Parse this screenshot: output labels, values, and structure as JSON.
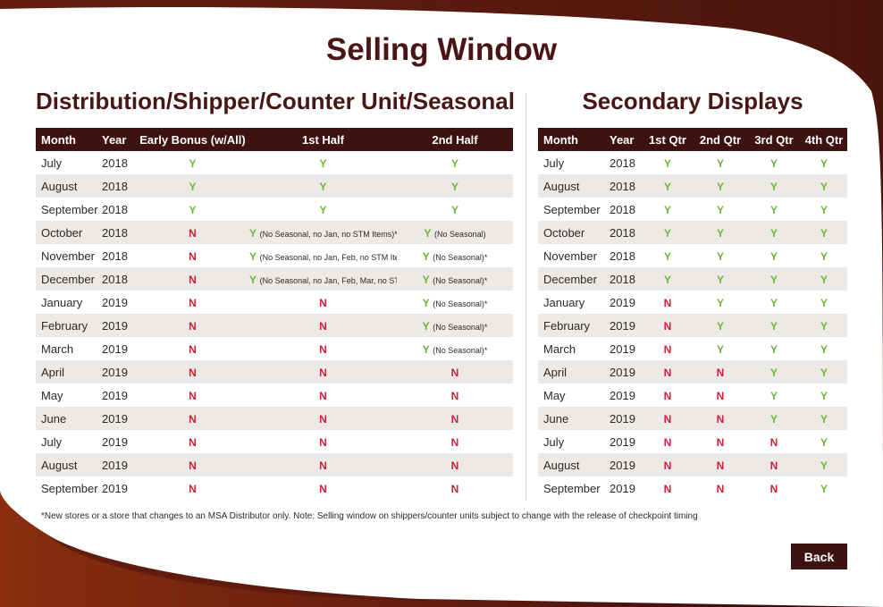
{
  "page_title": "Selling Window",
  "left_section": {
    "title": "Distribution/Shipper/Counter Unit/Seasonal",
    "headers": [
      "Month",
      "Year",
      "Early Bonus (w/All)",
      "1st Half",
      "2nd Half"
    ],
    "rows": [
      {
        "month": "July",
        "year": "2018",
        "cells": [
          {
            "mark": "Y",
            "note": ""
          },
          {
            "mark": "Y",
            "note": ""
          },
          {
            "mark": "Y",
            "note": ""
          }
        ]
      },
      {
        "month": "August",
        "year": "2018",
        "cells": [
          {
            "mark": "Y",
            "note": ""
          },
          {
            "mark": "Y",
            "note": ""
          },
          {
            "mark": "Y",
            "note": ""
          }
        ]
      },
      {
        "month": "September",
        "year": "2018",
        "cells": [
          {
            "mark": "Y",
            "note": ""
          },
          {
            "mark": "Y",
            "note": ""
          },
          {
            "mark": "Y",
            "note": ""
          }
        ]
      },
      {
        "month": "October",
        "year": "2018",
        "cells": [
          {
            "mark": "N",
            "note": ""
          },
          {
            "mark": "Y",
            "note": "(No Seasonal, no Jan, no STM Items)*"
          },
          {
            "mark": "Y",
            "note": "(No Seasonal)"
          }
        ]
      },
      {
        "month": "November",
        "year": "2018",
        "cells": [
          {
            "mark": "N",
            "note": ""
          },
          {
            "mark": "Y",
            "note": "(No Seasonal, no Jan, Feb, no STM Items)*"
          },
          {
            "mark": "Y",
            "note": "(No Seasonal)*"
          }
        ]
      },
      {
        "month": "December",
        "year": "2018",
        "cells": [
          {
            "mark": "N",
            "note": ""
          },
          {
            "mark": "Y",
            "note": "(No Seasonal, no Jan, Feb, Mar, no STM Items)*"
          },
          {
            "mark": "Y",
            "note": "(No Seasonal)*"
          }
        ]
      },
      {
        "month": "January",
        "year": "2019",
        "cells": [
          {
            "mark": "N",
            "note": ""
          },
          {
            "mark": "N",
            "note": ""
          },
          {
            "mark": "Y",
            "note": "(No Seasonal)*"
          }
        ]
      },
      {
        "month": "February",
        "year": "2019",
        "cells": [
          {
            "mark": "N",
            "note": ""
          },
          {
            "mark": "N",
            "note": ""
          },
          {
            "mark": "Y",
            "note": "(No Seasonal)*"
          }
        ]
      },
      {
        "month": "March",
        "year": "2019",
        "cells": [
          {
            "mark": "N",
            "note": ""
          },
          {
            "mark": "N",
            "note": ""
          },
          {
            "mark": "Y",
            "note": "(No Seasonal)*"
          }
        ]
      },
      {
        "month": "April",
        "year": "2019",
        "cells": [
          {
            "mark": "N",
            "note": ""
          },
          {
            "mark": "N",
            "note": ""
          },
          {
            "mark": "N",
            "note": ""
          }
        ]
      },
      {
        "month": "May",
        "year": "2019",
        "cells": [
          {
            "mark": "N",
            "note": ""
          },
          {
            "mark": "N",
            "note": ""
          },
          {
            "mark": "N",
            "note": ""
          }
        ]
      },
      {
        "month": "June",
        "year": "2019",
        "cells": [
          {
            "mark": "N",
            "note": ""
          },
          {
            "mark": "N",
            "note": ""
          },
          {
            "mark": "N",
            "note": ""
          }
        ]
      },
      {
        "month": "July",
        "year": "2019",
        "cells": [
          {
            "mark": "N",
            "note": ""
          },
          {
            "mark": "N",
            "note": ""
          },
          {
            "mark": "N",
            "note": ""
          }
        ]
      },
      {
        "month": "August",
        "year": "2019",
        "cells": [
          {
            "mark": "N",
            "note": ""
          },
          {
            "mark": "N",
            "note": ""
          },
          {
            "mark": "N",
            "note": ""
          }
        ]
      },
      {
        "month": "September",
        "year": "2019",
        "cells": [
          {
            "mark": "N",
            "note": ""
          },
          {
            "mark": "N",
            "note": ""
          },
          {
            "mark": "N",
            "note": ""
          }
        ]
      }
    ]
  },
  "right_section": {
    "title": "Secondary Displays",
    "headers": [
      "Month",
      "Year",
      "1st Qtr",
      "2nd Qtr",
      "3rd Qtr",
      "4th Qtr"
    ],
    "rows": [
      {
        "month": "July",
        "year": "2018",
        "cells": [
          {
            "mark": "Y",
            "note": ""
          },
          {
            "mark": "Y",
            "note": ""
          },
          {
            "mark": "Y",
            "note": ""
          },
          {
            "mark": "Y",
            "note": ""
          }
        ]
      },
      {
        "month": "August",
        "year": "2018",
        "cells": [
          {
            "mark": "Y",
            "note": ""
          },
          {
            "mark": "Y",
            "note": ""
          },
          {
            "mark": "Y",
            "note": ""
          },
          {
            "mark": "Y",
            "note": ""
          }
        ]
      },
      {
        "month": "September",
        "year": "2018",
        "cells": [
          {
            "mark": "Y",
            "note": ""
          },
          {
            "mark": "Y",
            "note": ""
          },
          {
            "mark": "Y",
            "note": ""
          },
          {
            "mark": "Y",
            "note": ""
          }
        ]
      },
      {
        "month": "October",
        "year": "2018",
        "cells": [
          {
            "mark": "Y",
            "note": ""
          },
          {
            "mark": "Y",
            "note": ""
          },
          {
            "mark": "Y",
            "note": ""
          },
          {
            "mark": "Y",
            "note": ""
          }
        ]
      },
      {
        "month": "November",
        "year": "2018",
        "cells": [
          {
            "mark": "Y",
            "note": ""
          },
          {
            "mark": "Y",
            "note": ""
          },
          {
            "mark": "Y",
            "note": ""
          },
          {
            "mark": "Y",
            "note": ""
          }
        ]
      },
      {
        "month": "December",
        "year": "2018",
        "cells": [
          {
            "mark": "Y",
            "note": ""
          },
          {
            "mark": "Y",
            "note": ""
          },
          {
            "mark": "Y",
            "note": ""
          },
          {
            "mark": "Y",
            "note": ""
          }
        ]
      },
      {
        "month": "January",
        "year": "2019",
        "cells": [
          {
            "mark": "N",
            "note": ""
          },
          {
            "mark": "Y",
            "note": ""
          },
          {
            "mark": "Y",
            "note": ""
          },
          {
            "mark": "Y",
            "note": ""
          }
        ]
      },
      {
        "month": "February",
        "year": "2019",
        "cells": [
          {
            "mark": "N",
            "note": ""
          },
          {
            "mark": "Y",
            "note": ""
          },
          {
            "mark": "Y",
            "note": ""
          },
          {
            "mark": "Y",
            "note": ""
          }
        ]
      },
      {
        "month": "March",
        "year": "2019",
        "cells": [
          {
            "mark": "N",
            "note": ""
          },
          {
            "mark": "Y",
            "note": ""
          },
          {
            "mark": "Y",
            "note": ""
          },
          {
            "mark": "Y",
            "note": ""
          }
        ]
      },
      {
        "month": "April",
        "year": "2019",
        "cells": [
          {
            "mark": "N",
            "note": ""
          },
          {
            "mark": "N",
            "note": ""
          },
          {
            "mark": "Y",
            "note": ""
          },
          {
            "mark": "Y",
            "note": ""
          }
        ]
      },
      {
        "month": "May",
        "year": "2019",
        "cells": [
          {
            "mark": "N",
            "note": ""
          },
          {
            "mark": "N",
            "note": ""
          },
          {
            "mark": "Y",
            "note": ""
          },
          {
            "mark": "Y",
            "note": ""
          }
        ]
      },
      {
        "month": "June",
        "year": "2019",
        "cells": [
          {
            "mark": "N",
            "note": ""
          },
          {
            "mark": "N",
            "note": ""
          },
          {
            "mark": "Y",
            "note": ""
          },
          {
            "mark": "Y",
            "note": ""
          }
        ]
      },
      {
        "month": "July",
        "year": "2019",
        "cells": [
          {
            "mark": "N",
            "note": ""
          },
          {
            "mark": "N",
            "note": ""
          },
          {
            "mark": "N",
            "note": ""
          },
          {
            "mark": "Y",
            "note": ""
          }
        ]
      },
      {
        "month": "August",
        "year": "2019",
        "cells": [
          {
            "mark": "N",
            "note": ""
          },
          {
            "mark": "N",
            "note": ""
          },
          {
            "mark": "N",
            "note": ""
          },
          {
            "mark": "Y",
            "note": ""
          }
        ]
      },
      {
        "month": "September",
        "year": "2019",
        "cells": [
          {
            "mark": "N",
            "note": ""
          },
          {
            "mark": "N",
            "note": ""
          },
          {
            "mark": "N",
            "note": ""
          },
          {
            "mark": "Y",
            "note": ""
          }
        ]
      }
    ]
  },
  "footnote": "*New stores or a store that changes to an MSA Distributor only. Note: Selling window on shippers/counter units subject to change with the release of checkpoint timing",
  "back_button": {
    "label": "Back"
  },
  "colors": {
    "accent": "#3f1212",
    "title": "#4a1515",
    "yes": "#6cb73a",
    "no": "#d0203a",
    "row_alt": "#ece9e6",
    "frame_dark": "#4a1010",
    "frame_light": "#8a2e0e"
  }
}
